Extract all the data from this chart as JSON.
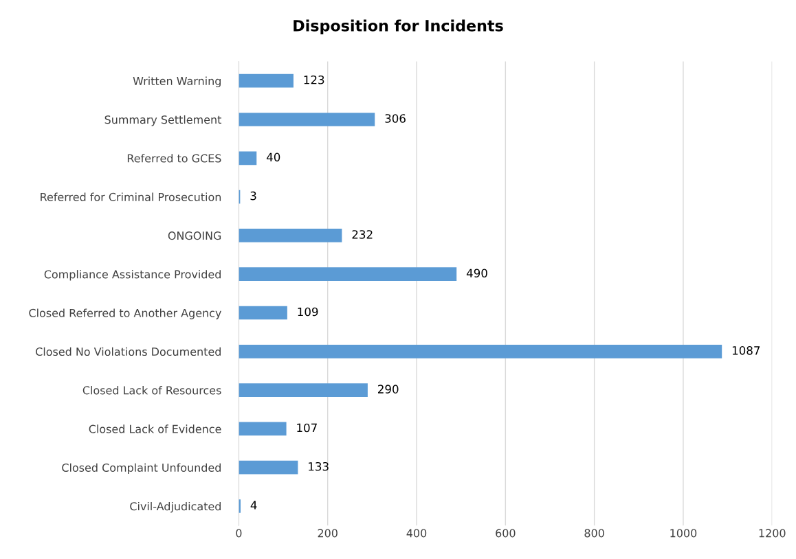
{
  "chart_data": {
    "type": "bar",
    "orientation": "horizontal",
    "title": "Disposition for Incidents",
    "categories": [
      "Written Warning",
      "Summary Settlement",
      "Referred to GCES",
      "Referred for Criminal Prosecution",
      "ONGOING",
      "Compliance Assistance Provided",
      "Closed Referred to Another Agency",
      "Closed No Violations Documented",
      "Closed Lack of Resources",
      "Closed Lack of Evidence",
      "Closed Complaint Unfounded",
      "Civil-Adjudicated"
    ],
    "values": [
      123,
      306,
      40,
      3,
      232,
      490,
      109,
      1087,
      290,
      107,
      133,
      4
    ],
    "color": "#5b9bd5",
    "xlim": [
      0,
      1200
    ],
    "xticks": [
      0,
      200,
      400,
      600,
      800,
      1000,
      1200
    ],
    "grid": "x",
    "data_labels": true
  }
}
